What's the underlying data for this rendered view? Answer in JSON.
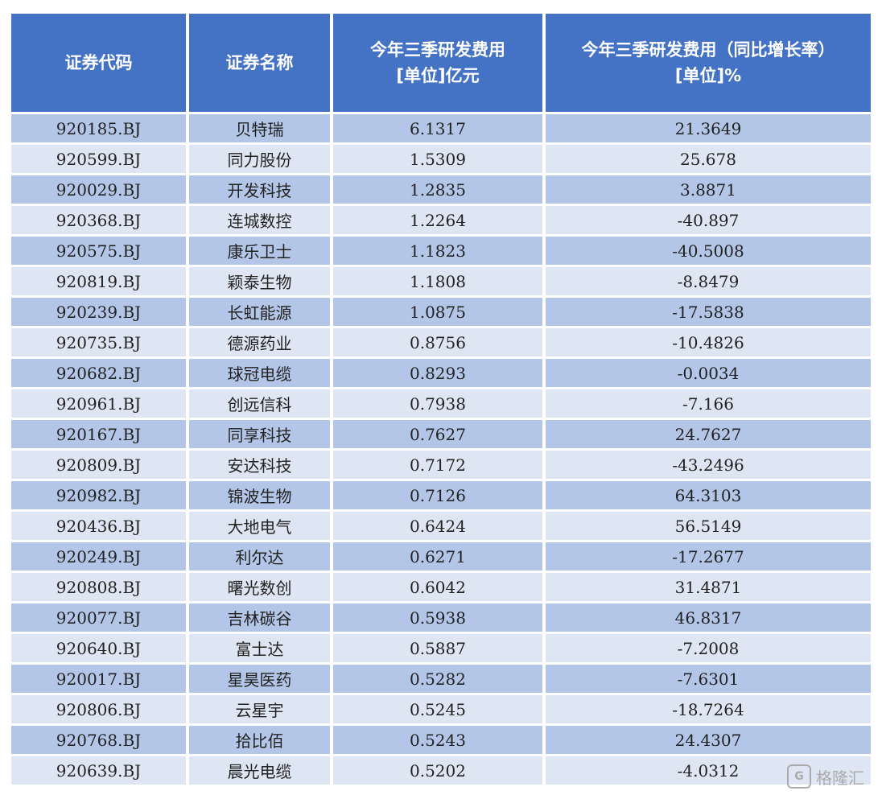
{
  "table": {
    "headers": [
      {
        "line1": "证券代码",
        "line2": ""
      },
      {
        "line1": "证券名称",
        "line2": ""
      },
      {
        "line1": "今年三季研发费用",
        "line2": "[单位]亿元"
      },
      {
        "line1": "今年三季研发费用（同比增长率）",
        "line2": "[单位]%"
      }
    ],
    "rows": [
      [
        "920185.BJ",
        "贝特瑞",
        "6.1317",
        "21.3649"
      ],
      [
        "920599.BJ",
        "同力股份",
        "1.5309",
        "25.678"
      ],
      [
        "920029.BJ",
        "开发科技",
        "1.2835",
        "3.8871"
      ],
      [
        "920368.BJ",
        "连城数控",
        "1.2264",
        "-40.897"
      ],
      [
        "920575.BJ",
        "康乐卫士",
        "1.1823",
        "-40.5008"
      ],
      [
        "920819.BJ",
        "颖泰生物",
        "1.1808",
        "-8.8479"
      ],
      [
        "920239.BJ",
        "长虹能源",
        "1.0875",
        "-17.5838"
      ],
      [
        "920735.BJ",
        "德源药业",
        "0.8756",
        "-10.4826"
      ],
      [
        "920682.BJ",
        "球冠电缆",
        "0.8293",
        "-0.0034"
      ],
      [
        "920961.BJ",
        "创远信科",
        "0.7938",
        "-7.166"
      ],
      [
        "920167.BJ",
        "同享科技",
        "0.7627",
        "24.7627"
      ],
      [
        "920809.BJ",
        "安达科技",
        "0.7172",
        "-43.2496"
      ],
      [
        "920982.BJ",
        "锦波生物",
        "0.7126",
        "64.3103"
      ],
      [
        "920436.BJ",
        "大地电气",
        "0.6424",
        "56.5149"
      ],
      [
        "920249.BJ",
        "利尔达",
        "0.6271",
        "-17.2677"
      ],
      [
        "920808.BJ",
        "曙光数创",
        "0.6042",
        "31.4871"
      ],
      [
        "920077.BJ",
        "吉林碳谷",
        "0.5938",
        "46.8317"
      ],
      [
        "920640.BJ",
        "富士达",
        "0.5887",
        "-7.2008"
      ],
      [
        "920017.BJ",
        "星昊医药",
        "0.5282",
        "-7.6301"
      ],
      [
        "920806.BJ",
        "云星宇",
        "0.5245",
        "-18.7264"
      ],
      [
        "920768.BJ",
        "拾比佰",
        "0.5243",
        "24.4307"
      ],
      [
        "920639.BJ",
        "晨光电缆",
        "0.5202",
        "-4.0312"
      ]
    ]
  },
  "watermark": {
    "icon": "G",
    "text": "格隆汇"
  }
}
